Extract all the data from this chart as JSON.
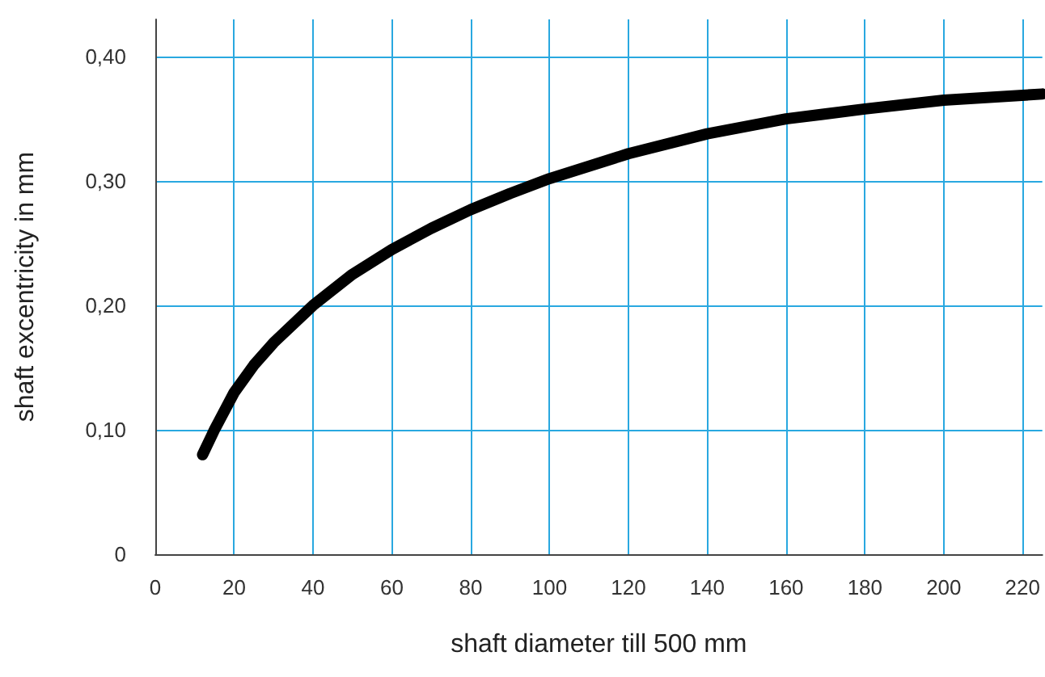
{
  "chart_data": {
    "type": "line",
    "xlabel": "shaft diameter till 500 mm",
    "ylabel": "shaft excentricity in mm",
    "x": [
      12,
      15,
      20,
      25,
      30,
      40,
      50,
      60,
      70,
      80,
      90,
      100,
      120,
      140,
      160,
      180,
      200,
      225
    ],
    "series": [
      {
        "color": "#000000",
        "values": [
          0.08,
          0.1,
          0.13,
          0.152,
          0.17,
          0.2,
          0.225,
          0.245,
          0.262,
          0.277,
          0.29,
          0.302,
          0.322,
          0.338,
          0.35,
          0.358,
          0.365,
          0.37
        ]
      }
    ],
    "xlim": [
      0,
      225
    ],
    "xticks": [
      0,
      20,
      40,
      60,
      80,
      100,
      120,
      140,
      160,
      180,
      200,
      220
    ],
    "ylim": [
      0,
      0.43
    ],
    "yticks": [
      {
        "value": 0,
        "label": "0"
      },
      {
        "value": 0.1,
        "label": "0,10"
      },
      {
        "value": 0.2,
        "label": "0,20"
      },
      {
        "value": 0.3,
        "label": "0,30"
      },
      {
        "value": 0.4,
        "label": "0,40"
      }
    ],
    "grid": true,
    "line_style": "solid"
  }
}
